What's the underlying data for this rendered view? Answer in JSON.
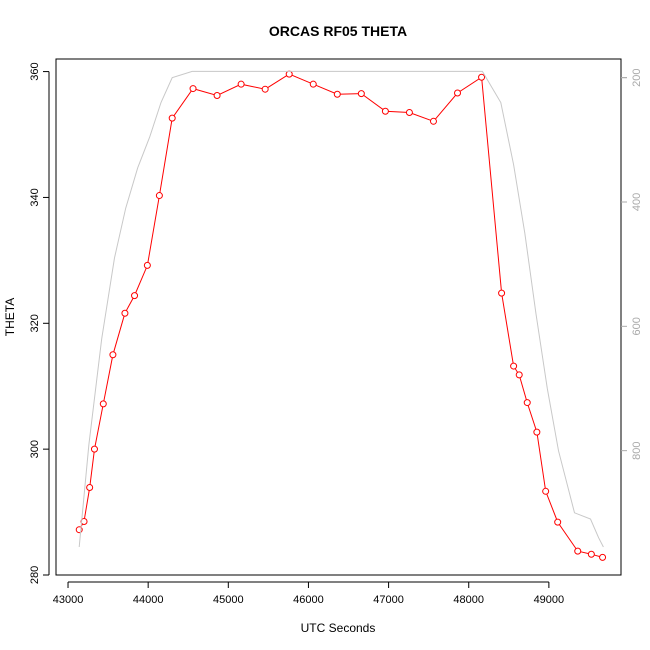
{
  "chart_data": {
    "type": "line",
    "title": "ORCAS RF05 THETA",
    "xlabel": "UTC Seconds",
    "ylabel": "THETA",
    "xlim": [
      42850,
      49900
    ],
    "ylim": [
      280,
      362
    ],
    "x_ticks": [
      43000,
      44000,
      45000,
      46000,
      47000,
      48000,
      49000
    ],
    "x_tick_labels": [
      "43000",
      "44000",
      "45000",
      "46000",
      "47000",
      "48000",
      "49000"
    ],
    "y_ticks": [
      280,
      300,
      320,
      340,
      360
    ],
    "y_tick_labels": [
      "280",
      "300",
      "320",
      "340",
      "360"
    ],
    "y2lim": [
      1000,
      170
    ],
    "y2_ticks": [
      200,
      400,
      600,
      800
    ],
    "y2_tick_labels": [
      "200",
      "400",
      "600",
      "800"
    ],
    "grid": false,
    "series": [
      {
        "axis": "left",
        "color": "#ff0000",
        "marker": "open-circle",
        "x": [
          43140,
          43200,
          43270,
          43330,
          43440,
          43560,
          43710,
          43830,
          43990,
          44140,
          44300,
          44560,
          44860,
          45160,
          45460,
          45760,
          46060,
          46360,
          46660,
          46960,
          47260,
          47560,
          47860,
          48160,
          48410,
          48560,
          48630,
          48730,
          48850,
          48960,
          49110,
          49360,
          49530,
          49670
        ],
        "y": [
          287.2,
          288.5,
          293.9,
          300.0,
          307.2,
          315.0,
          321.6,
          324.4,
          329.2,
          340.3,
          352.6,
          357.3,
          356.2,
          358.0,
          357.2,
          359.6,
          358.0,
          356.4,
          356.5,
          353.7,
          353.5,
          352.1,
          356.6,
          359.1,
          324.8,
          313.2,
          311.8,
          307.4,
          302.7,
          293.3,
          288.4,
          283.8,
          283.3,
          282.8
        ]
      },
      {
        "axis": "right",
        "color": "#c8c8c8",
        "x": [
          43140,
          43260,
          43420,
          43580,
          43720,
          43870,
          44020,
          44160,
          44300,
          44550,
          44860,
          45200,
          45600,
          46000,
          46400,
          46800,
          47200,
          47600,
          48000,
          48170,
          48400,
          48560,
          48700,
          48840,
          48980,
          49120,
          49320,
          49520,
          49620,
          49680
        ],
        "y": [
          955,
          790,
          620,
          490,
          410,
          345,
          295,
          240,
          200,
          190,
          190,
          190,
          190,
          190,
          190,
          190,
          190,
          190,
          190,
          190,
          240,
          340,
          450,
          580,
          700,
          800,
          900,
          910,
          940,
          955
        ]
      }
    ]
  }
}
